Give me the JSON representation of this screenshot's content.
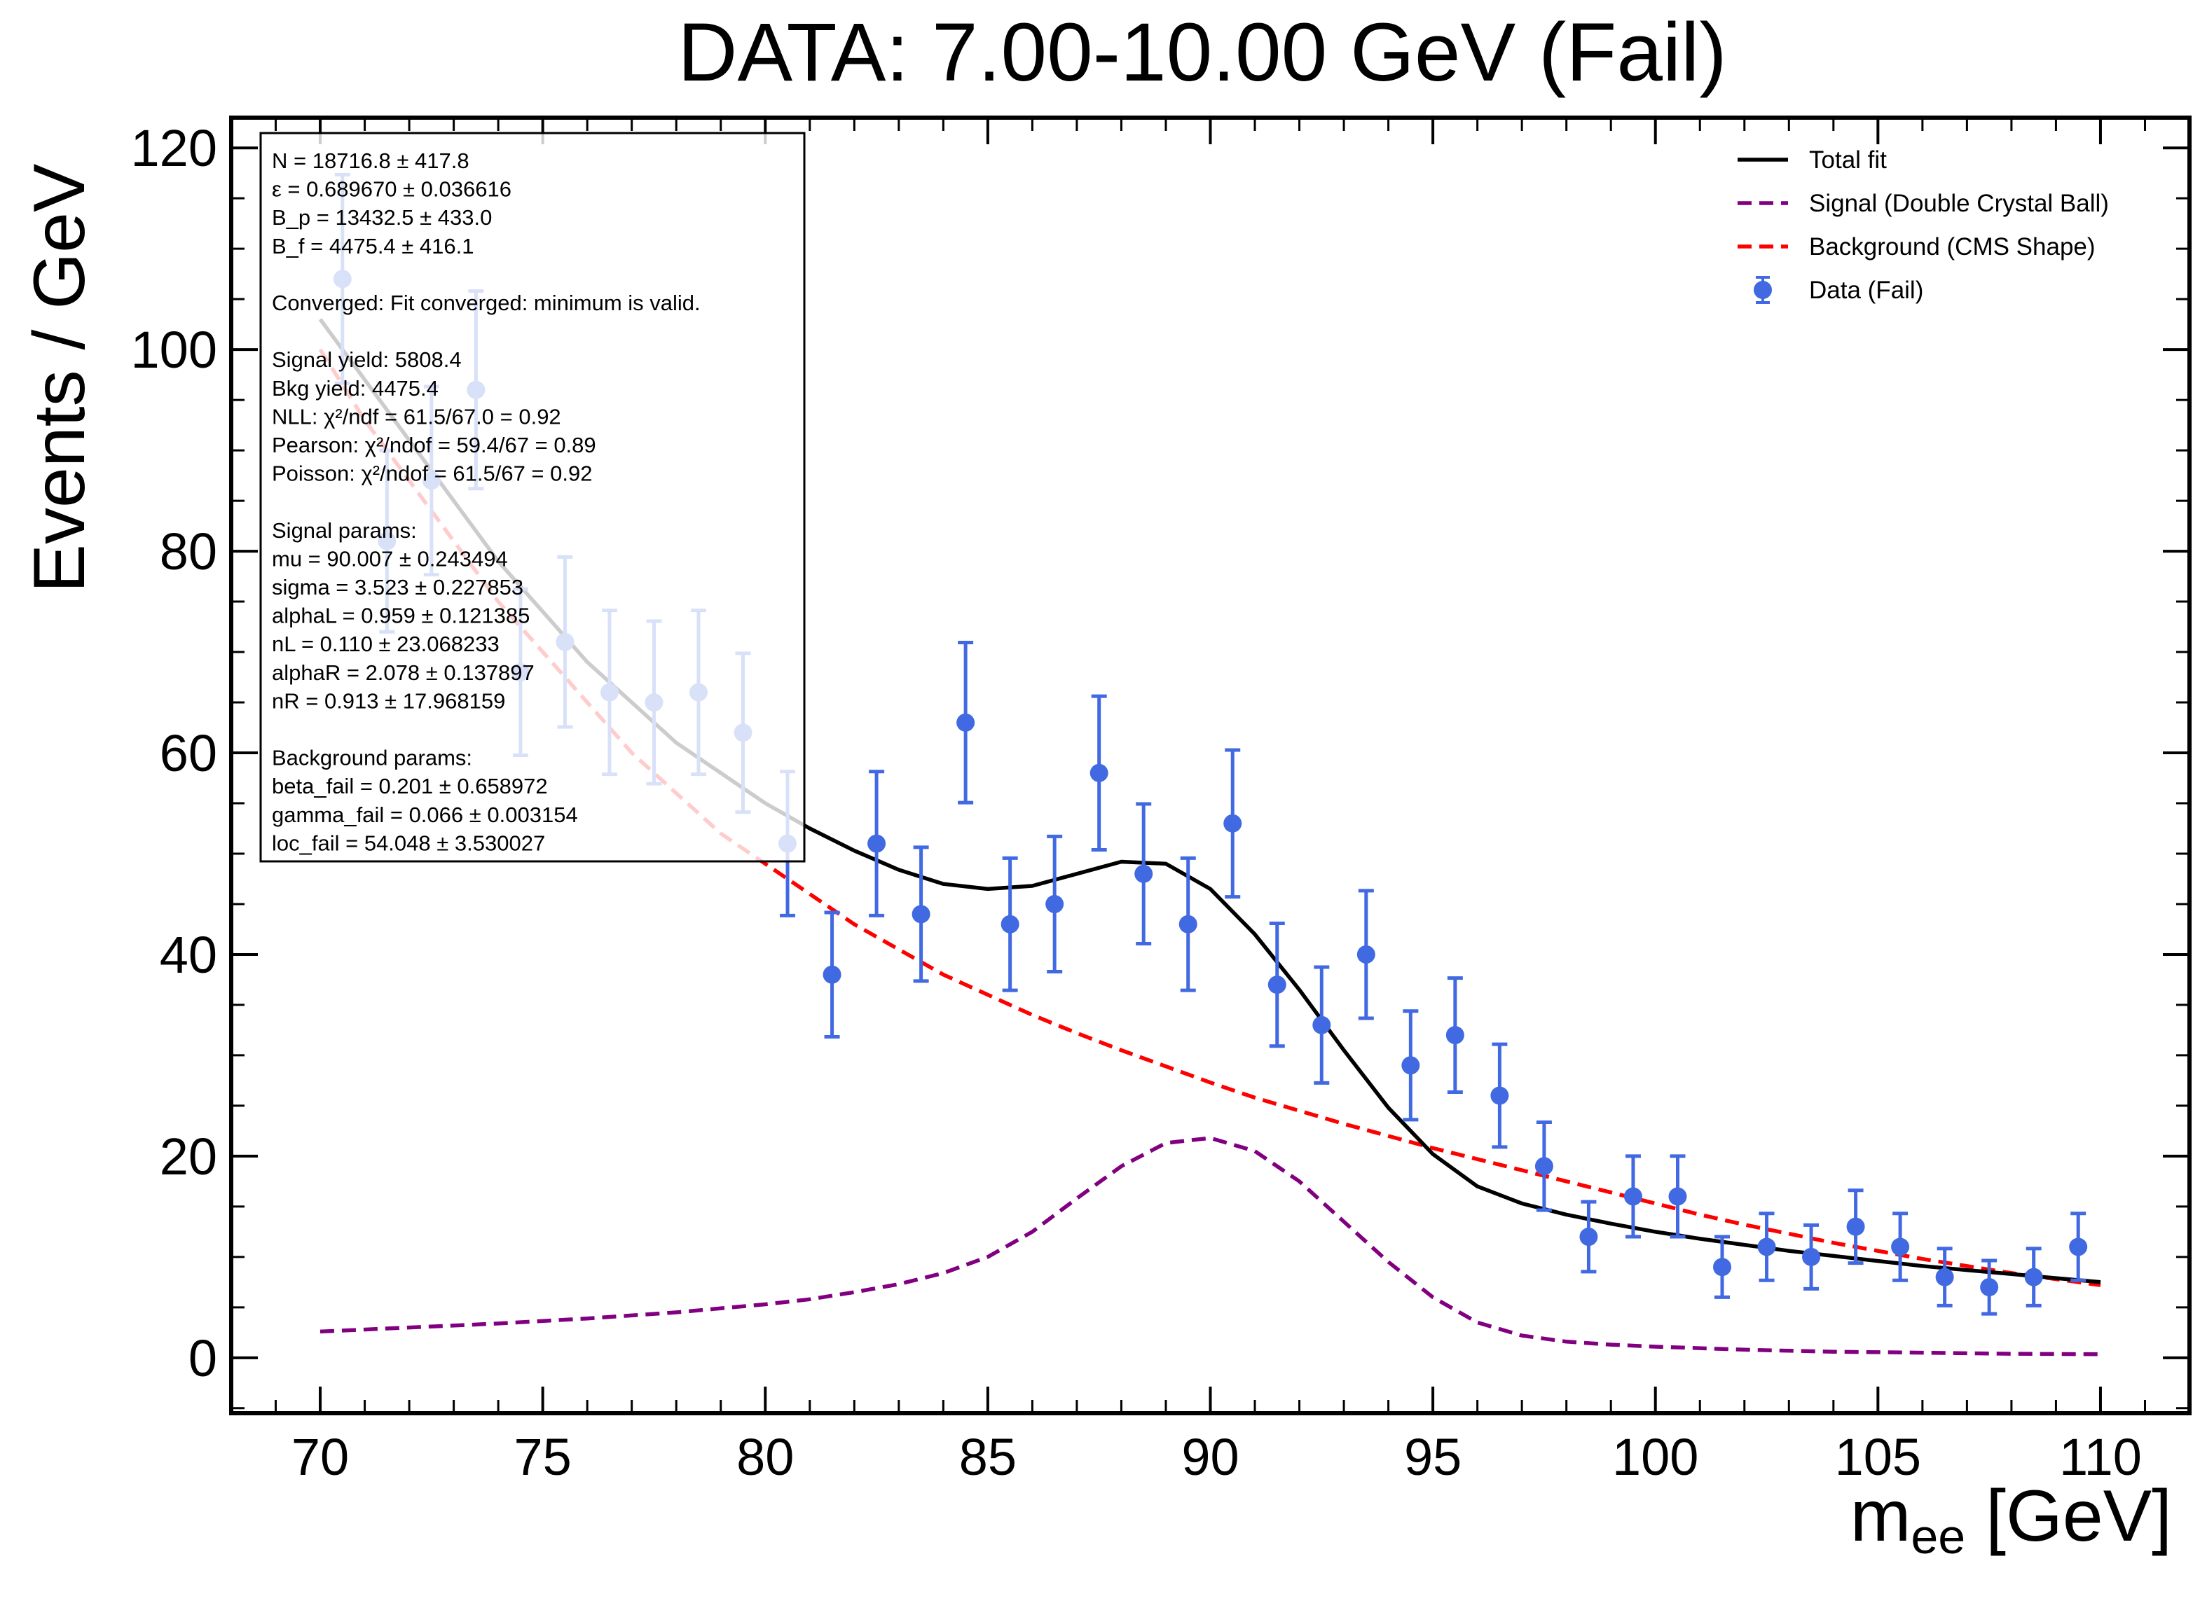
{
  "chart_data": {
    "type": "scatter",
    "title": "DATA: 7.00-10.00 GeV (Fail)",
    "xlabel_main": "m",
    "xlabel_sub": "ee",
    "xlabel_unit": " [GeV]",
    "ylabel": "Events / GeV",
    "xlim": [
      68,
      112
    ],
    "ylim": [
      -5.5,
      123
    ],
    "xticks": [
      70,
      75,
      80,
      85,
      90,
      95,
      100,
      105,
      110
    ],
    "yticks": [
      0,
      20,
      40,
      60,
      80,
      100,
      120
    ],
    "grid": false,
    "legend_position": "top-right",
    "colors": {
      "data": "#4169E1",
      "total": "#000000",
      "signal": "#800080",
      "background": "#FF0000"
    },
    "legend": [
      {
        "key": "total",
        "label": "Total fit",
        "style": "solid-line"
      },
      {
        "key": "signal",
        "label": "Signal (Double Crystal Ball)",
        "style": "dashed-line"
      },
      {
        "key": "background",
        "label": "Background (CMS Shape)",
        "style": "dashed-line"
      },
      {
        "key": "data",
        "label": "Data (Fail)",
        "style": "marker"
      }
    ],
    "data_points": {
      "x": [
        70.5,
        71.5,
        72.5,
        73.5,
        74.5,
        75.5,
        76.5,
        77.5,
        78.5,
        79.5,
        80.5,
        81.5,
        82.5,
        83.5,
        84.5,
        85.5,
        86.5,
        87.5,
        88.5,
        89.5,
        90.5,
        91.5,
        92.5,
        93.5,
        94.5,
        95.5,
        96.5,
        97.5,
        98.5,
        99.5,
        100.5,
        101.5,
        102.5,
        103.5,
        104.5,
        105.5,
        106.5,
        107.5,
        108.5,
        109.5
      ],
      "y": [
        107,
        81,
        87,
        96,
        68,
        71,
        66,
        65,
        66,
        62,
        51,
        38,
        51,
        44,
        63,
        43,
        45,
        58,
        48,
        43,
        53,
        37,
        33,
        40,
        29,
        32,
        26,
        19,
        12,
        16,
        16,
        9,
        11,
        10,
        13,
        11,
        8,
        7,
        8,
        11
      ]
    },
    "total_fit": {
      "x": [
        70,
        71,
        72,
        73,
        74,
        75,
        76,
        77,
        78,
        79,
        80,
        81,
        82,
        83,
        84,
        85,
        86,
        87,
        88,
        89,
        90,
        91,
        92,
        93,
        94,
        95,
        96,
        97,
        98,
        99,
        100,
        101,
        102,
        103,
        104,
        105,
        106,
        107,
        108,
        109,
        110
      ],
      "y": [
        103,
        97,
        91,
        85,
        79,
        74,
        69,
        65,
        61,
        58,
        55,
        52.5,
        50.3,
        48.4,
        47.0,
        46.5,
        46.8,
        48.0,
        49.2,
        49.0,
        46.5,
        42,
        36.5,
        30.5,
        24.8,
        20.2,
        17.0,
        15.3,
        14.2,
        13.3,
        12.5,
        11.8,
        11.2,
        10.6,
        10.1,
        9.6,
        9.1,
        8.7,
        8.3,
        7.9,
        7.5
      ]
    },
    "signal_fit": {
      "x": [
        70,
        72,
        74,
        76,
        78,
        80,
        81,
        82,
        83,
        84,
        85,
        86,
        87,
        88,
        89,
        90,
        91,
        92,
        93,
        94,
        95,
        96,
        97,
        98,
        99,
        100,
        102,
        104,
        106,
        108,
        110
      ],
      "y": [
        2.6,
        3.0,
        3.4,
        3.9,
        4.5,
        5.3,
        5.8,
        6.5,
        7.3,
        8.4,
        10.0,
        12.5,
        15.8,
        19.0,
        21.3,
        21.8,
        20.5,
        17.5,
        13.5,
        9.5,
        6.0,
        3.5,
        2.2,
        1.6,
        1.3,
        1.1,
        0.8,
        0.6,
        0.5,
        0.4,
        0.35
      ]
    },
    "background_fit": {
      "x": [
        70,
        71,
        72,
        73,
        74,
        75,
        76,
        77,
        78,
        79,
        80,
        81,
        82,
        83,
        84,
        85,
        86,
        87,
        88,
        89,
        90,
        91,
        92,
        93,
        94,
        95,
        96,
        97,
        98,
        99,
        100,
        101,
        102,
        103,
        104,
        105,
        106,
        107,
        108,
        109,
        110
      ],
      "y": [
        100,
        93,
        87,
        81,
        75,
        70,
        65,
        60,
        56,
        52,
        49,
        46,
        43,
        40.5,
        38,
        36,
        34,
        32.2,
        30.5,
        28.9,
        27.3,
        25.8,
        24.5,
        23.2,
        22.0,
        20.8,
        19.7,
        18.6,
        17.5,
        16.4,
        15.3,
        14.2,
        13.2,
        12.3,
        11.4,
        10.6,
        9.8,
        9.1,
        8.4,
        7.8,
        7.2
      ]
    },
    "stats_box": [
      "N = 18716.8 ± 417.8",
      "ε = 0.689670 ± 0.036616",
      "B_p = 13432.5 ± 433.0",
      "B_f = 4475.4 ± 416.1",
      "",
      "Converged: Fit converged: minimum is valid.",
      "",
      "Signal yield: 5808.4",
      "Bkg yield: 4475.4",
      "NLL: χ²/ndf = 61.5/67.0 = 0.92",
      "Pearson: χ²/ndof = 59.4/67 = 0.89",
      "Poisson: χ²/ndof = 61.5/67 = 0.92",
      "",
      "Signal params:",
      "mu = 90.007 ± 0.243494",
      "sigma = 3.523 ± 0.227853",
      "alphaL = 0.959 ± 0.121385",
      "nL = 0.110 ± 23.068233",
      "alphaR = 2.078 ± 0.137897",
      "nR = 0.913 ± 17.968159",
      "",
      "Background params:",
      "beta_fail = 0.201 ± 0.658972",
      "gamma_fail = 0.066 ± 0.003154",
      "loc_fail = 54.048 ± 3.530027"
    ]
  }
}
